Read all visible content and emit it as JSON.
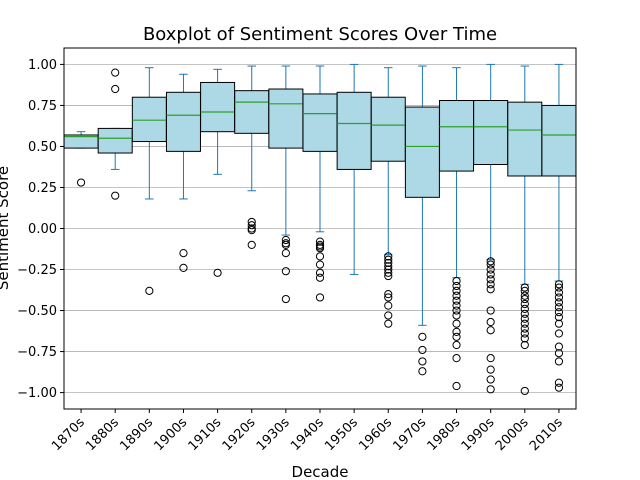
{
  "chart_data": {
    "type": "box",
    "title": "Boxplot of Sentiment Scores Over Time",
    "xlabel": "Decade",
    "ylabel": "Sentiment Score",
    "ylim": [
      -1.1,
      1.1
    ],
    "yticks": [
      -1.0,
      -0.75,
      -0.5,
      -0.25,
      0.0,
      0.25,
      0.5,
      0.75,
      1.0
    ],
    "ytick_labels": [
      "−1.00",
      "−0.75",
      "−0.50",
      "−0.25",
      "0.00",
      "0.25",
      "0.50",
      "0.75",
      "1.00"
    ],
    "grid": "horizontal",
    "box_color": "#add8e6",
    "whisker_color": "#1f77b4",
    "median_color": "#2ca02c",
    "boxes": [
      {
        "category": "1870s",
        "whislo": 0.49,
        "q1": 0.49,
        "median": 0.56,
        "q3": 0.57,
        "whishi": 0.59,
        "fliers": [
          0.28
        ]
      },
      {
        "category": "1880s",
        "whislo": 0.36,
        "q1": 0.46,
        "median": 0.55,
        "q3": 0.61,
        "whishi": 0.61,
        "fliers": [
          0.2,
          0.85,
          0.95
        ]
      },
      {
        "category": "1890s",
        "whislo": 0.18,
        "q1": 0.53,
        "median": 0.66,
        "q3": 0.8,
        "whishi": 0.98,
        "fliers": [
          -0.38
        ]
      },
      {
        "category": "1900s",
        "whislo": 0.18,
        "q1": 0.47,
        "median": 0.69,
        "q3": 0.83,
        "whishi": 0.94,
        "fliers": [
          -0.15,
          -0.24
        ]
      },
      {
        "category": "1910s",
        "whislo": 0.33,
        "q1": 0.59,
        "median": 0.71,
        "q3": 0.89,
        "whishi": 0.97,
        "fliers": [
          -0.27
        ]
      },
      {
        "category": "1920s",
        "whislo": 0.23,
        "q1": 0.58,
        "median": 0.77,
        "q3": 0.84,
        "whishi": 0.99,
        "fliers": [
          0.04,
          0.02,
          0.0,
          -0.01,
          -0.1
        ]
      },
      {
        "category": "1930s",
        "whislo": -0.04,
        "q1": 0.49,
        "median": 0.76,
        "q3": 0.85,
        "whishi": 0.99,
        "fliers": [
          -0.07,
          -0.09,
          -0.1,
          -0.15,
          -0.26,
          -0.43
        ]
      },
      {
        "category": "1940s",
        "whislo": -0.02,
        "q1": 0.47,
        "median": 0.7,
        "q3": 0.82,
        "whishi": 0.99,
        "fliers": [
          -0.08,
          -0.1,
          -0.11,
          -0.12,
          -0.17,
          -0.22,
          -0.27,
          -0.3,
          -0.42
        ]
      },
      {
        "category": "1950s",
        "whislo": -0.28,
        "q1": 0.36,
        "median": 0.64,
        "q3": 0.83,
        "whishi": 1.0,
        "fliers": []
      },
      {
        "category": "1960s",
        "whislo": -0.16,
        "q1": 0.41,
        "median": 0.63,
        "q3": 0.8,
        "whishi": 0.98,
        "fliers": [
          -0.17,
          -0.19,
          -0.21,
          -0.23,
          -0.25,
          -0.27,
          -0.29,
          -0.4,
          -0.42,
          -0.47,
          -0.53,
          -0.58
        ]
      },
      {
        "category": "1970s",
        "whislo": -0.59,
        "q1": 0.19,
        "median": 0.5,
        "q3": 0.74,
        "whishi": 0.99,
        "fliers": [
          -0.66,
          -0.74,
          -0.81,
          -0.87
        ]
      },
      {
        "category": "1980s",
        "whislo": -0.3,
        "q1": 0.35,
        "median": 0.62,
        "q3": 0.78,
        "whishi": 0.98,
        "fliers": [
          -0.32,
          -0.35,
          -0.38,
          -0.41,
          -0.44,
          -0.47,
          -0.5,
          -0.53,
          -0.58,
          -0.63,
          -0.66,
          -0.71,
          -0.79,
          -0.96
        ]
      },
      {
        "category": "1990s",
        "whislo": -0.19,
        "q1": 0.39,
        "median": 0.62,
        "q3": 0.78,
        "whishi": 1.0,
        "fliers": [
          -0.2,
          -0.22,
          -0.25,
          -0.28,
          -0.31,
          -0.34,
          -0.37,
          -0.5,
          -0.57,
          -0.62,
          -0.79,
          -0.86,
          -0.92,
          -0.98
        ]
      },
      {
        "category": "2000s",
        "whislo": -0.34,
        "q1": 0.32,
        "median": 0.6,
        "q3": 0.77,
        "whishi": 0.99,
        "fliers": [
          -0.36,
          -0.38,
          -0.41,
          -0.43,
          -0.46,
          -0.49,
          -0.52,
          -0.55,
          -0.58,
          -0.61,
          -0.64,
          -0.67,
          -0.71,
          -0.99
        ]
      },
      {
        "category": "2010s",
        "whislo": -0.32,
        "q1": 0.32,
        "median": 0.57,
        "q3": 0.75,
        "whishi": 1.0,
        "fliers": [
          -0.34,
          -0.36,
          -0.39,
          -0.42,
          -0.45,
          -0.48,
          -0.51,
          -0.54,
          -0.58,
          -0.64,
          -0.72,
          -0.76,
          -0.81,
          -0.94,
          -0.97
        ]
      }
    ]
  }
}
